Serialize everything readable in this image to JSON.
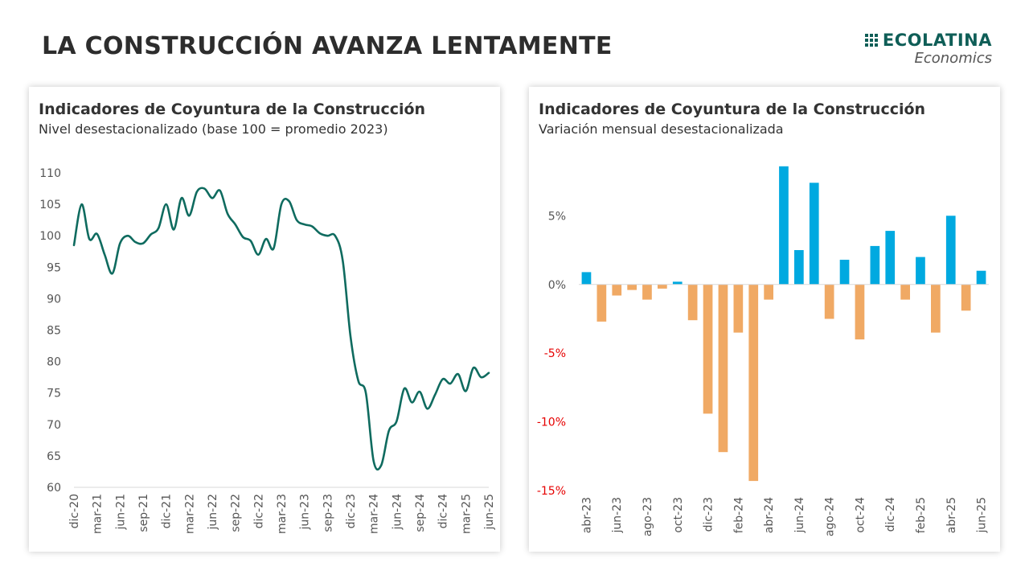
{
  "page": {
    "title": "LA CONSTRUCCIÓN AVANZA LENTAMENTE",
    "brand_name": "ECOLATINA",
    "brand_sub": "Economics"
  },
  "colors": {
    "line": "#0f6b5f",
    "positive": "#00a9e0",
    "negative": "#f0a964",
    "negative_tick": "#e60000",
    "axis": "#d9d9d9"
  },
  "chart_data": [
    {
      "type": "line",
      "title": "Indicadores de Coyuntura de la Construcción",
      "subtitle": "Nivel desestacionalizado (base 100 = promedio 2023)",
      "ylim": [
        60,
        110
      ],
      "yticks": [
        60,
        65,
        70,
        75,
        80,
        85,
        90,
        95,
        100,
        105,
        110
      ],
      "xticks": [
        "dic-20",
        "mar-21",
        "jun-21",
        "sep-21",
        "dic-21",
        "mar-22",
        "jun-22",
        "sep-22",
        "dic-22",
        "mar-23",
        "jun-23",
        "sep-23",
        "dic-23",
        "mar-24",
        "jun-24",
        "sep-24",
        "dic-24",
        "mar-25",
        "jun-25"
      ],
      "x": [
        "dic-20",
        "ene-21",
        "feb-21",
        "mar-21",
        "abr-21",
        "may-21",
        "jun-21",
        "jul-21",
        "ago-21",
        "sep-21",
        "oct-21",
        "nov-21",
        "dic-21",
        "ene-22",
        "feb-22",
        "mar-22",
        "abr-22",
        "may-22",
        "jun-22",
        "jul-22",
        "ago-22",
        "sep-22",
        "oct-22",
        "nov-22",
        "dic-22",
        "ene-23",
        "feb-23",
        "mar-23",
        "abr-23",
        "may-23",
        "jun-23",
        "jul-23",
        "ago-23",
        "sep-23",
        "oct-23",
        "nov-23",
        "dic-23",
        "ene-24",
        "feb-24",
        "mar-24",
        "abr-24",
        "may-24",
        "jun-24",
        "jul-24",
        "ago-24",
        "sep-24",
        "oct-24",
        "nov-24",
        "dic-24",
        "ene-25",
        "feb-25",
        "mar-25",
        "abr-25",
        "may-25",
        "jun-25"
      ],
      "series": [
        {
          "values": [
            98.5,
            105,
            99.5,
            100.3,
            97,
            94,
            98.8,
            100,
            99,
            98.8,
            100.2,
            101.2,
            105,
            101,
            106,
            103.2,
            107,
            107.5,
            106,
            107.2,
            103.5,
            101.8,
            99.8,
            99.2,
            97,
            99.5,
            98,
            105,
            105.5,
            102.5,
            101.8,
            101.5,
            100.4,
            100,
            100,
            96,
            84,
            77,
            75,
            64.2,
            63.5,
            69,
            70.5,
            75.7,
            73.5,
            75.2,
            72.5,
            74.7,
            77.2,
            76.5,
            78,
            75.3,
            79,
            77.5,
            78.2
          ]
        }
      ]
    },
    {
      "type": "bar",
      "title": "Indicadores de Coyuntura de la Construcción",
      "subtitle": "Variación mensual desestacionalizada",
      "ylim": [
        -15,
        9
      ],
      "yticks": [
        {
          "value": 5,
          "label": "5%"
        },
        {
          "value": 0,
          "label": "0%"
        },
        {
          "value": -5,
          "label": "-5%"
        },
        {
          "value": -10,
          "label": "-10%"
        },
        {
          "value": -15,
          "label": "-15%"
        }
      ],
      "categories": [
        "abr-23",
        "may-23",
        "jun-23",
        "jul-23",
        "ago-23",
        "sep-23",
        "oct-23",
        "nov-23",
        "dic-23",
        "ene-24",
        "feb-24",
        "mar-24",
        "abr-24",
        "may-24",
        "jun-24",
        "jul-24",
        "ago-24",
        "sep-24",
        "oct-24",
        "nov-24",
        "dic-24",
        "ene-25",
        "feb-25",
        "mar-25",
        "abr-25",
        "may-25",
        "jun-25"
      ],
      "xticks": [
        "abr-23",
        "jun-23",
        "ago-23",
        "oct-23",
        "dic-23",
        "feb-24",
        "abr-24",
        "jun-24",
        "ago-24",
        "oct-24",
        "dic-24",
        "feb-25",
        "abr-25",
        "jun-25"
      ],
      "values": [
        0.9,
        -2.7,
        -0.8,
        -0.4,
        -1.1,
        -0.3,
        0.2,
        -2.6,
        -9.4,
        -12.2,
        -3.5,
        -14.3,
        -1.1,
        8.6,
        2.5,
        7.4,
        -2.5,
        1.8,
        -4.0,
        2.8,
        3.9,
        -1.1,
        2.0,
        -3.5,
        5.0,
        -1.9,
        1.0
      ]
    }
  ]
}
